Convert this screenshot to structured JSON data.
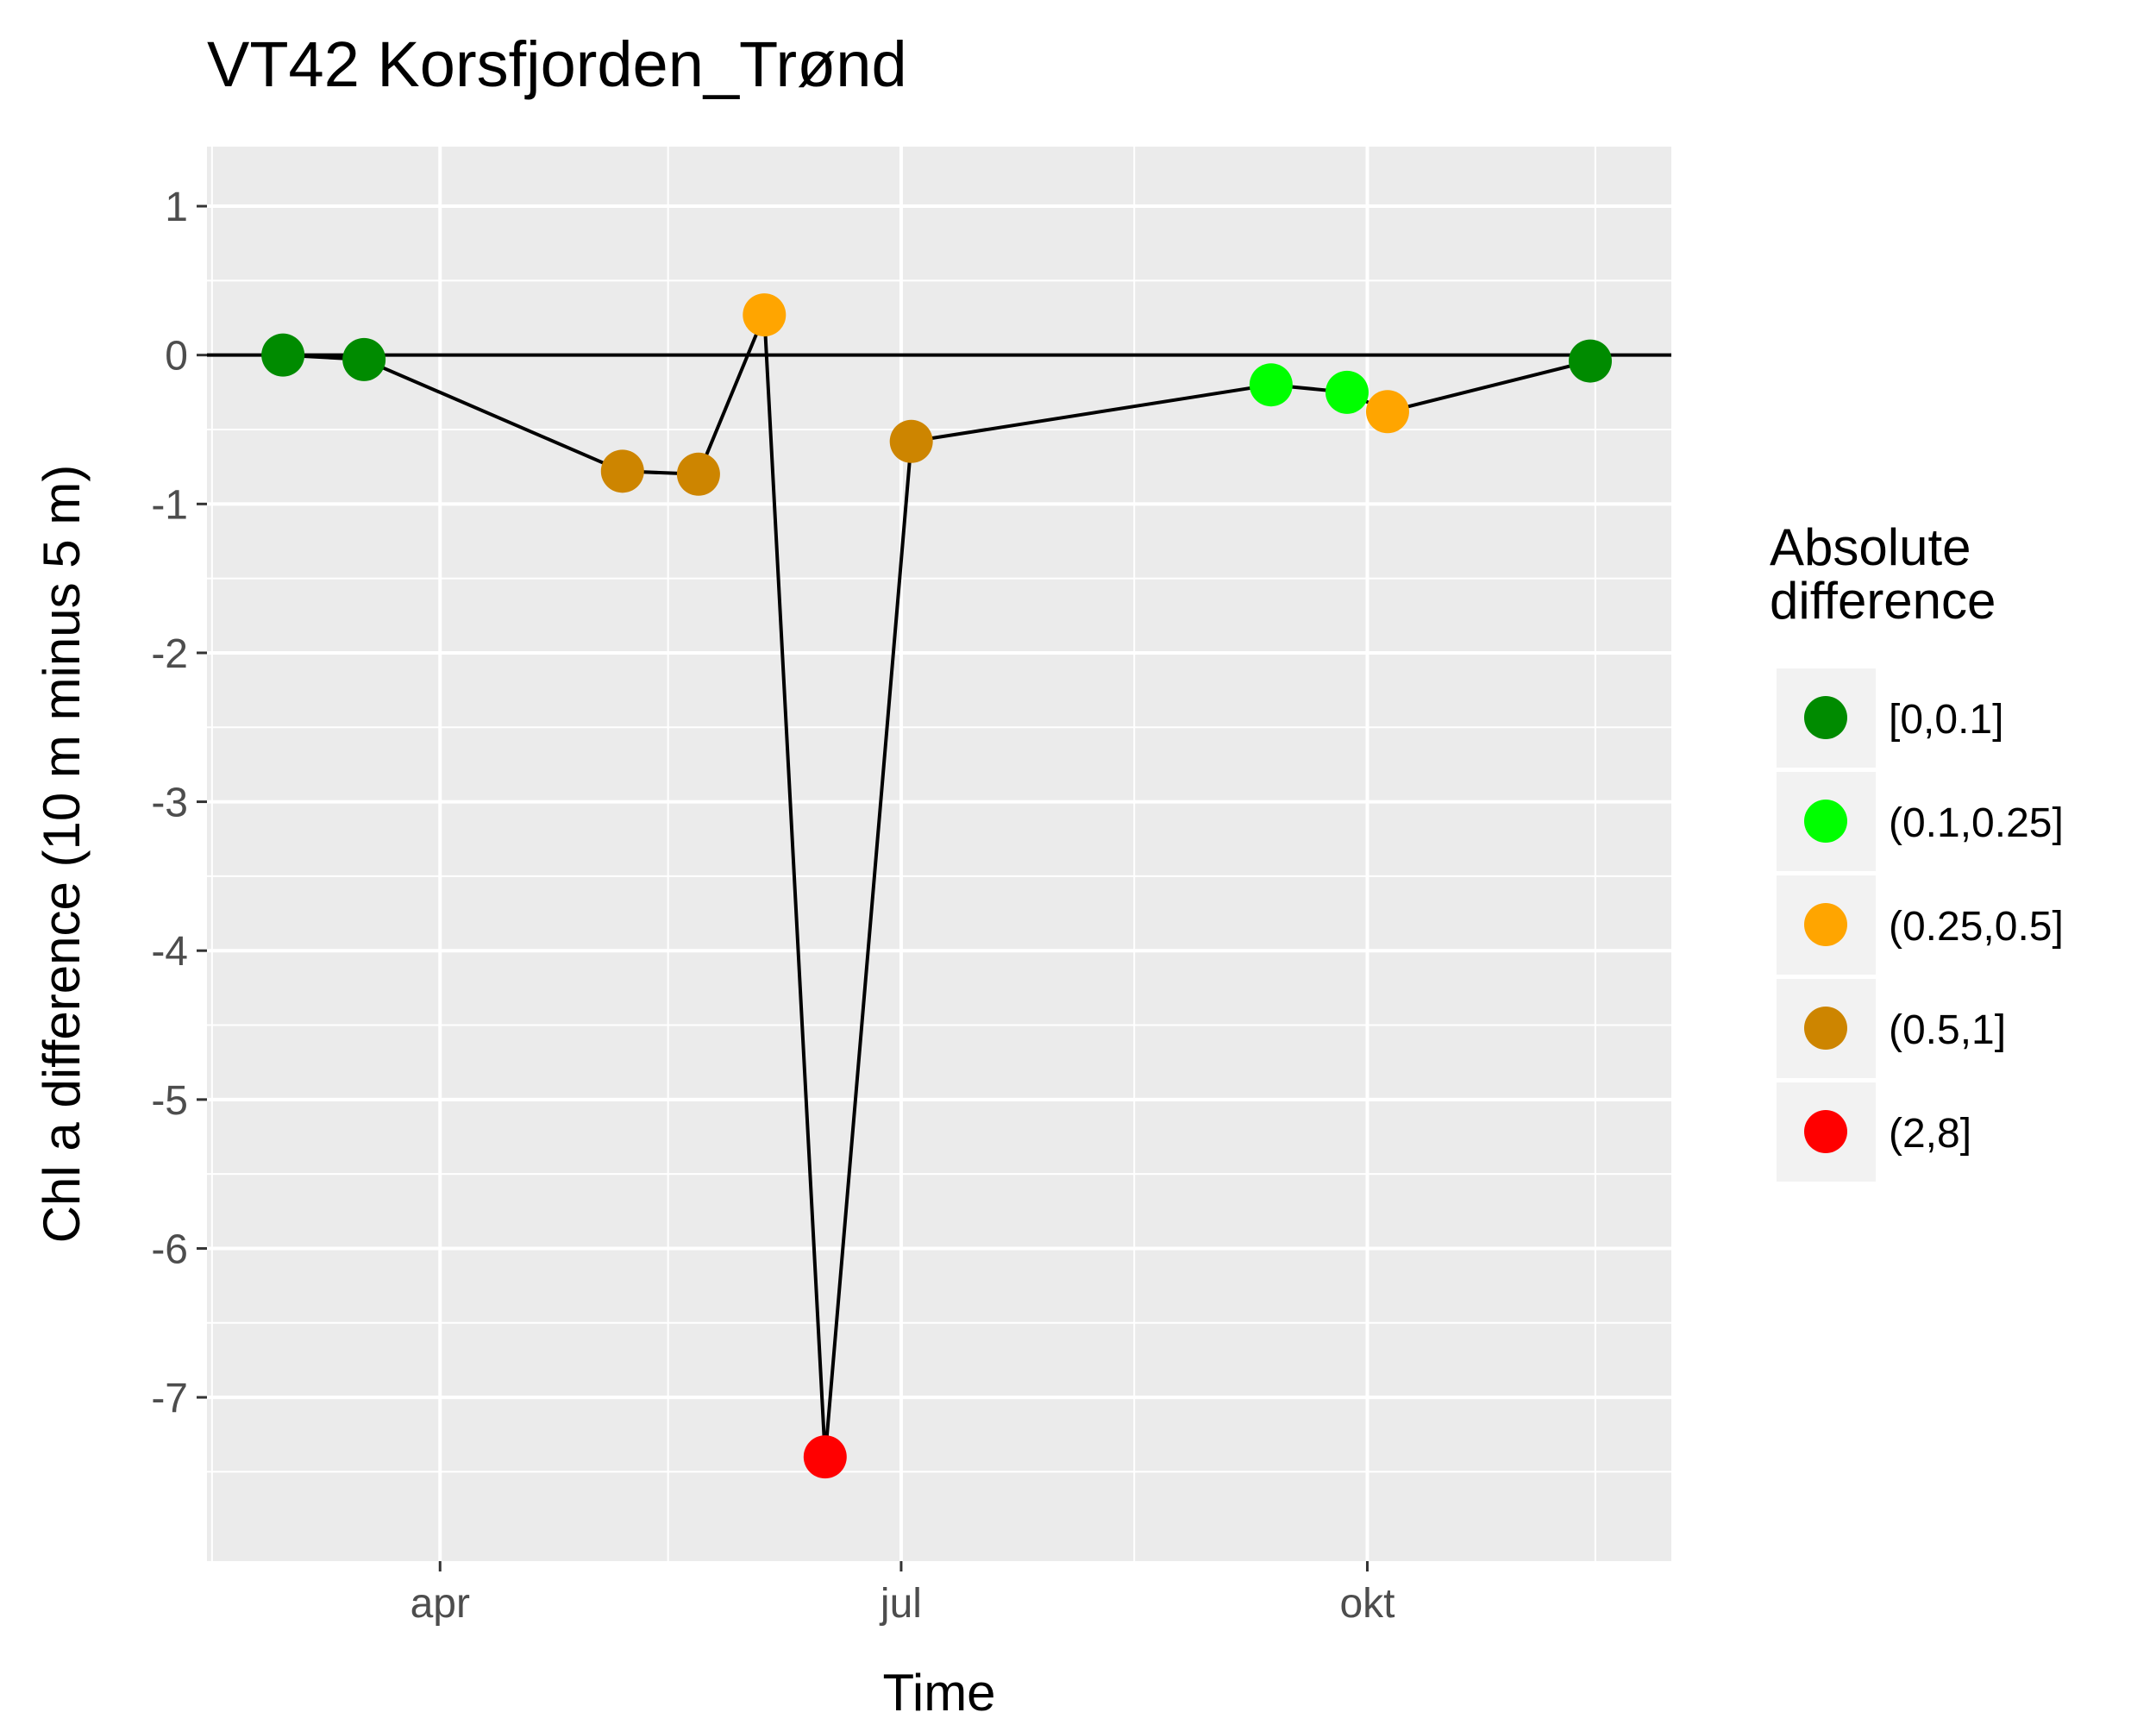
{
  "chart_data": {
    "type": "line",
    "title": "VT42 Korsfjorden_Trønd",
    "xlabel": "Time",
    "ylabel": "Chl a difference (10 m minus 5 m)",
    "x_ticks": [
      "apr",
      "jul",
      "okt"
    ],
    "y_ticks": [
      1,
      0,
      -1,
      -2,
      -3,
      -4,
      -5,
      -6,
      -7
    ],
    "ylim": [
      -8.1,
      1.4
    ],
    "xlim": [
      "2017-02-14",
      "2017-11-30"
    ],
    "grid": true,
    "reference_line_y": 0,
    "legend": {
      "title": "Absolute difference",
      "title_lines": [
        "Absolute",
        "difference"
      ],
      "position": "right",
      "entries": [
        {
          "label": "[0,0.1]",
          "color": "#008B00"
        },
        {
          "label": "(0.1,0.25]",
          "color": "#00FF00"
        },
        {
          "label": "(0.25,0.5]",
          "color": "#FFA500"
        },
        {
          "label": "(0.5,1]",
          "color": "#CD8500"
        },
        {
          "label": "(2,8]",
          "color": "#FF0000"
        }
      ]
    },
    "points": [
      {
        "x": "2017-03-01",
        "y": 0.0,
        "category": "[0,0.1]"
      },
      {
        "x": "2017-03-17",
        "y": -0.03,
        "category": "[0,0.1]"
      },
      {
        "x": "2017-05-07",
        "y": -0.78,
        "category": "(0.5,1]"
      },
      {
        "x": "2017-05-22",
        "y": -0.8,
        "category": "(0.5,1]"
      },
      {
        "x": "2017-06-04",
        "y": 0.27,
        "category": "(0.25,0.5]"
      },
      {
        "x": "2017-06-16",
        "y": -7.4,
        "category": "(2,8]"
      },
      {
        "x": "2017-07-03",
        "y": -0.58,
        "category": "(0.5,1]"
      },
      {
        "x": "2017-09-12",
        "y": -0.2,
        "category": "(0.1,0.25]"
      },
      {
        "x": "2017-09-27",
        "y": -0.25,
        "category": "(0.1,0.25]"
      },
      {
        "x": "2017-10-05",
        "y": -0.38,
        "category": "(0.25,0.5]"
      },
      {
        "x": "2017-11-14",
        "y": -0.04,
        "category": "[0,0.1]"
      }
    ]
  }
}
